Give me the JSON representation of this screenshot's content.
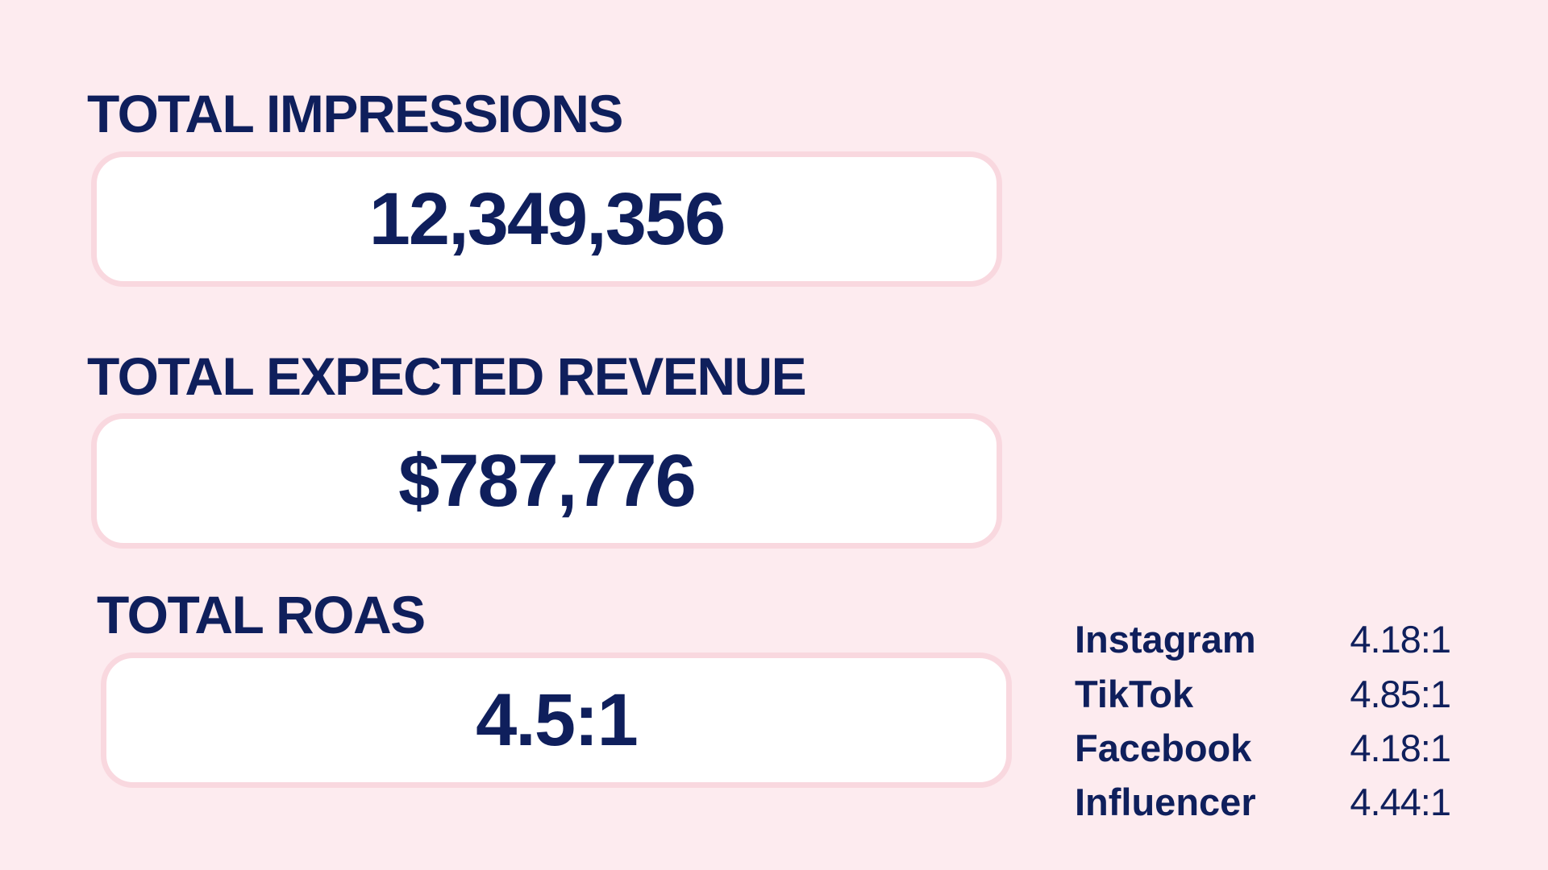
{
  "metrics": [
    {
      "label": "TOTAL IMPRESSIONS",
      "value": "12,349,356"
    },
    {
      "label": "TOTAL EXPECTED REVENUE",
      "value": "$787,776"
    },
    {
      "label": "TOTAL ROAS",
      "value": "4.5:1"
    }
  ],
  "breakdown": [
    {
      "channel": "Instagram",
      "roas": "4.18:1"
    },
    {
      "channel": "TikTok",
      "roas": "4.85:1"
    },
    {
      "channel": "Facebook",
      "roas": "4.18:1"
    },
    {
      "channel": "Influencer",
      "roas": "4.44:1"
    }
  ]
}
